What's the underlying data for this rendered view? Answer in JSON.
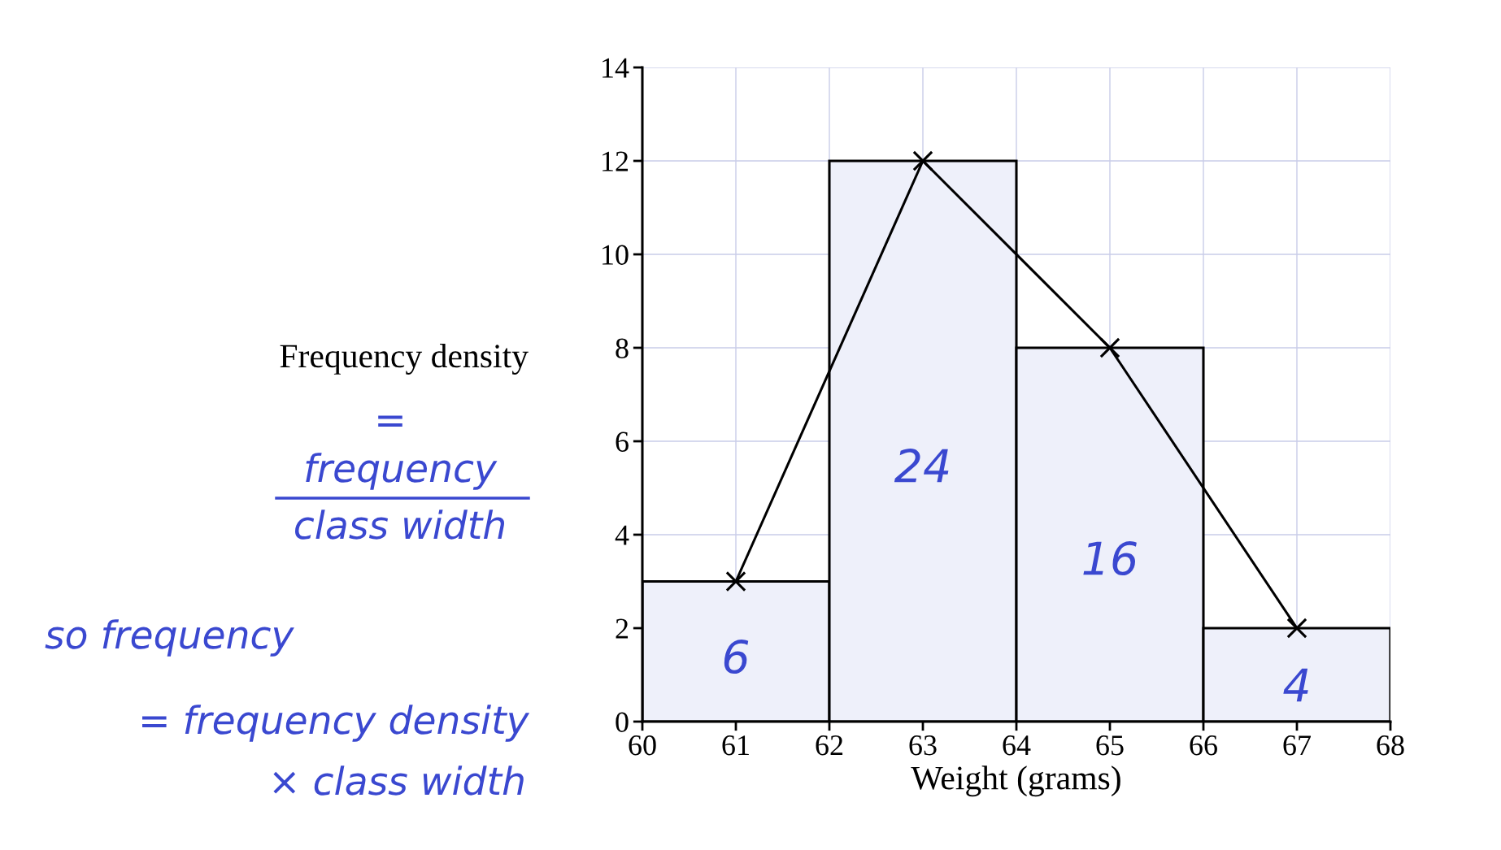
{
  "chart_data": {
    "type": "histogram",
    "ylabel": "Frequency density",
    "xlabel": "Weight (grams)",
    "bins": [
      60,
      62,
      64,
      66,
      68
    ],
    "values": [
      3,
      12,
      8,
      2
    ],
    "color": "#eef0fa",
    "series": [
      {
        "type": "line",
        "x": [
          61,
          63,
          65,
          67
        ],
        "values": [
          3,
          12,
          8,
          2
        ],
        "color": "#000000",
        "marker": "cross",
        "line_style": "solid"
      }
    ],
    "xlim": [
      60,
      68
    ],
    "xticks": [
      60,
      61,
      62,
      63,
      64,
      65,
      66,
      67,
      68
    ],
    "ylim": [
      0,
      14
    ],
    "yticks": [
      0,
      2,
      4,
      6,
      8,
      10,
      12,
      14
    ],
    "grid": true,
    "annotations": [
      "6",
      "24",
      "16",
      "4",
      "=",
      "frequency",
      "class width",
      "so frequency",
      "= frequency density",
      "× class width"
    ]
  }
}
